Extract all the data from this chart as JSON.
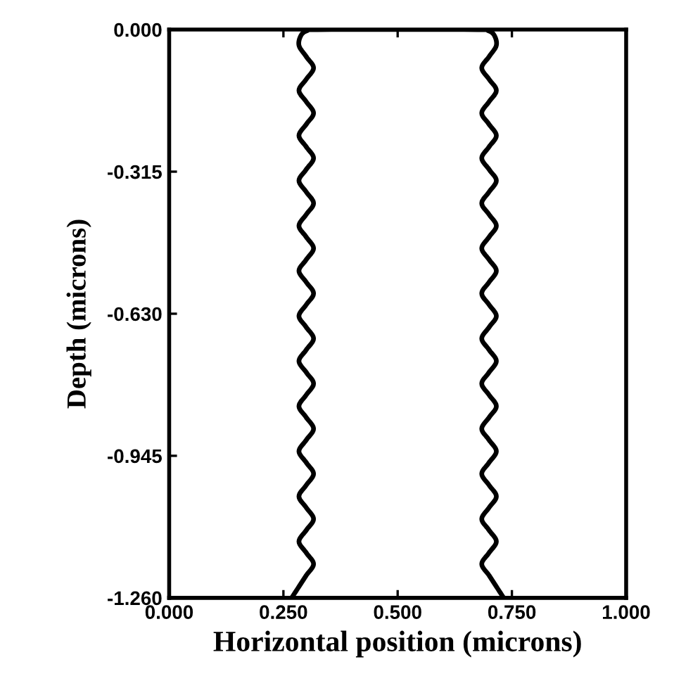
{
  "chart_data": {
    "type": "line",
    "xlabel": "Horizontal position (microns)",
    "ylabel": "Depth (microns)",
    "xlim": [
      0,
      1
    ],
    "ylim": [
      -1.26,
      0
    ],
    "xticks": [
      {
        "value": 0,
        "label": "0.000"
      },
      {
        "value": 0.25,
        "label": "0.250"
      },
      {
        "value": 0.5,
        "label": "0.500"
      },
      {
        "value": 0.75,
        "label": "0.750"
      },
      {
        "value": 1,
        "label": "1.000"
      }
    ],
    "yticks": [
      {
        "value": 0,
        "label": "0.000"
      },
      {
        "value": -0.315,
        "label": "-0.315"
      },
      {
        "value": -0.63,
        "label": "-0.630"
      },
      {
        "value": -0.945,
        "label": "-0.945"
      },
      {
        "value": -1.26,
        "label": "-1.260"
      }
    ],
    "grid": false,
    "legend": false,
    "marker": "none",
    "line_style": "solid",
    "series": [
      {
        "color": "#000000",
        "x": [
          0.268,
          0.284,
          0.3,
          0.316,
          0.3,
          0.284,
          0.3,
          0.316,
          0.3,
          0.284,
          0.3,
          0.316,
          0.3,
          0.284,
          0.3,
          0.316,
          0.3,
          0.284,
          0.3,
          0.316,
          0.3,
          0.284,
          0.3,
          0.316,
          0.3,
          0.284,
          0.3,
          0.316,
          0.3,
          0.284,
          0.3,
          0.316,
          0.3,
          0.284,
          0.3,
          0.316,
          0.3,
          0.284,
          0.3,
          0.316,
          0.3,
          0.284,
          0.3,
          0.316,
          0.3,
          0.284,
          0.3,
          0.316,
          0.3,
          0.284,
          0.289,
          0.303,
          0.325,
          0.675,
          0.697,
          0.711,
          0.716,
          0.7,
          0.684,
          0.7,
          0.716,
          0.7,
          0.684,
          0.7,
          0.716,
          0.7,
          0.684,
          0.7,
          0.716,
          0.7,
          0.684,
          0.7,
          0.716,
          0.7,
          0.684,
          0.7,
          0.716,
          0.7,
          0.684,
          0.7,
          0.716,
          0.7,
          0.684,
          0.7,
          0.716,
          0.7,
          0.684,
          0.7,
          0.716,
          0.7,
          0.684,
          0.7,
          0.716,
          0.7,
          0.684,
          0.7,
          0.716,
          0.7,
          0.684,
          0.7,
          0.716,
          0.7,
          0.684,
          0.7,
          0.716,
          0.732
        ],
        "values": [
          -1.26,
          -1.235,
          -1.21,
          -1.185,
          -1.16,
          -1.135,
          -1.11,
          -1.085,
          -1.06,
          -1.035,
          -1.01,
          -0.985,
          -0.96,
          -0.935,
          -0.91,
          -0.885,
          -0.86,
          -0.835,
          -0.81,
          -0.785,
          -0.76,
          -0.735,
          -0.71,
          -0.685,
          -0.66,
          -0.635,
          -0.61,
          -0.585,
          -0.56,
          -0.535,
          -0.51,
          -0.485,
          -0.46,
          -0.435,
          -0.41,
          -0.385,
          -0.36,
          -0.335,
          -0.31,
          -0.285,
          -0.26,
          -0.235,
          -0.21,
          -0.185,
          -0.16,
          -0.135,
          -0.11,
          -0.085,
          -0.06,
          -0.035,
          -0.012,
          -0.002,
          0,
          0,
          -0.002,
          -0.012,
          -0.035,
          -0.06,
          -0.085,
          -0.11,
          -0.135,
          -0.16,
          -0.185,
          -0.21,
          -0.235,
          -0.26,
          -0.285,
          -0.31,
          -0.335,
          -0.36,
          -0.385,
          -0.41,
          -0.435,
          -0.46,
          -0.485,
          -0.51,
          -0.535,
          -0.56,
          -0.585,
          -0.61,
          -0.635,
          -0.66,
          -0.685,
          -0.71,
          -0.735,
          -0.76,
          -0.785,
          -0.81,
          -0.835,
          -0.86,
          -0.885,
          -0.91,
          -0.935,
          -0.96,
          -0.985,
          -1.01,
          -1.035,
          -1.06,
          -1.085,
          -1.11,
          -1.135,
          -1.16,
          -1.185,
          -1.21,
          -1.235,
          -1.26
        ]
      }
    ]
  }
}
